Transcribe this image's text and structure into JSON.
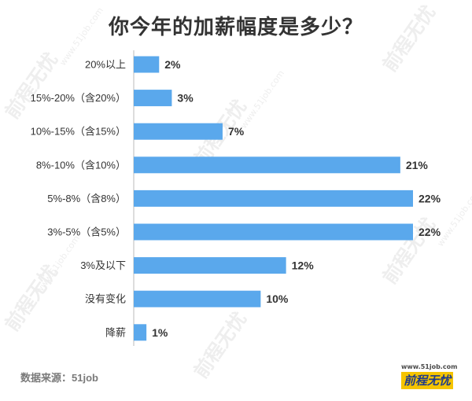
{
  "title": "你今年的加薪幅度是多少？",
  "source": "数据来源：51job",
  "logo": {
    "url_text": "www.51job.com",
    "brand": "前程无忧"
  },
  "colors": {
    "bar": "#5aa8ec",
    "text": "#333333"
  },
  "chart_data": {
    "type": "bar",
    "orientation": "horizontal",
    "categories": [
      "20%以上",
      "15%-20%（含20%）",
      "10%-15%（含15%）",
      "8%-10%（含10%）",
      "5%-8%（含8%）",
      "3%-5%（含5%）",
      "3%及以下",
      "没有变化",
      "降薪"
    ],
    "values": [
      2,
      3,
      7,
      21,
      22,
      22,
      12,
      10,
      1
    ],
    "value_labels": [
      "2%",
      "3%",
      "7%",
      "21%",
      "22%",
      "22%",
      "12%",
      "10%",
      "1%"
    ],
    "xlim": [
      0,
      22
    ],
    "grid": false
  }
}
